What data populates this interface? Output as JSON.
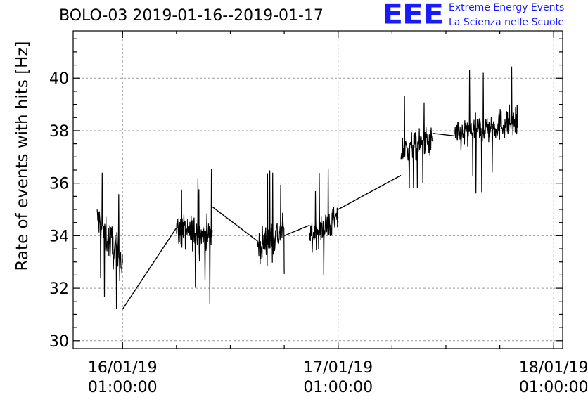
{
  "title": "BOLO-03 2019-01-16--2019-01-17",
  "logo": {
    "mark": "EEE",
    "line1": "Extreme Energy Events",
    "line2": "La Scienza nelle Scuole",
    "color": "#1a1aff"
  },
  "chart_data": {
    "type": "line",
    "title": "BOLO-03 2019-01-16--2019-01-17",
    "ylabel": "Rate of events with hits [Hz]",
    "xlabel": "",
    "ylim": [
      29.7,
      41.8
    ],
    "yticks": [
      30,
      32,
      34,
      36,
      38,
      40
    ],
    "xlim": [
      "2019-01-15 19:30",
      "2019-01-18 02:00"
    ],
    "xticks": [
      {
        "x": "2019-01-16 01:00",
        "line1": "16/01/19",
        "line2": "01:00:00"
      },
      {
        "x": "2019-01-17 01:00",
        "line1": "17/01/19",
        "line2": "01:00:00"
      },
      {
        "x": "2019-01-18 01:00",
        "line1": "18/01/19",
        "line2": "01:00:00"
      }
    ],
    "minor_xticks_hours": 6,
    "grid": true,
    "line_color": "#000000",
    "series": [
      {
        "segments": [
          {
            "start": "2019-01-15 22:10",
            "end": "2019-01-16 01:00",
            "level_start": 34.6,
            "level_end": 33.0,
            "spread": 1.4,
            "min": 31.2,
            "max": 36.4
          },
          {
            "start": "2019-01-16 07:00",
            "end": "2019-01-16 11:00",
            "level_start": 34.2,
            "level_end": 34.0,
            "spread": 1.2,
            "min": 30.7,
            "max": 37.3
          },
          {
            "start": "2019-01-16 16:00",
            "end": "2019-01-16 19:00",
            "level_start": 33.6,
            "level_end": 34.2,
            "spread": 1.2,
            "min": 31.5,
            "max": 36.6
          },
          {
            "start": "2019-01-16 21:50",
            "end": "2019-01-17 01:00",
            "level_start": 34.0,
            "level_end": 34.6,
            "spread": 1.0,
            "min": 32.5,
            "max": 36.9
          },
          {
            "start": "2019-01-17 08:00",
            "end": "2019-01-17 11:30",
            "level_start": 37.2,
            "level_end": 37.6,
            "spread": 1.1,
            "min": 35.8,
            "max": 40.0
          },
          {
            "start": "2019-01-17 14:00",
            "end": "2019-01-17 21:00",
            "level_start": 37.8,
            "level_end": 38.4,
            "spread": 1.1,
            "min": 35.5,
            "max": 40.8
          }
        ],
        "connectors": [
          [
            "2019-01-16 01:00",
            31.2,
            "2019-01-16 07:00",
            34.3
          ],
          [
            "2019-01-16 11:00",
            35.1,
            "2019-01-16 16:00",
            33.8
          ],
          [
            "2019-01-16 19:00",
            34.0,
            "2019-01-16 21:50",
            34.4
          ],
          [
            "2019-01-17 01:00",
            35.0,
            "2019-01-17 08:00",
            36.3
          ],
          [
            "2019-01-17 11:30",
            37.9,
            "2019-01-17 14:00",
            37.8
          ]
        ]
      }
    ]
  }
}
